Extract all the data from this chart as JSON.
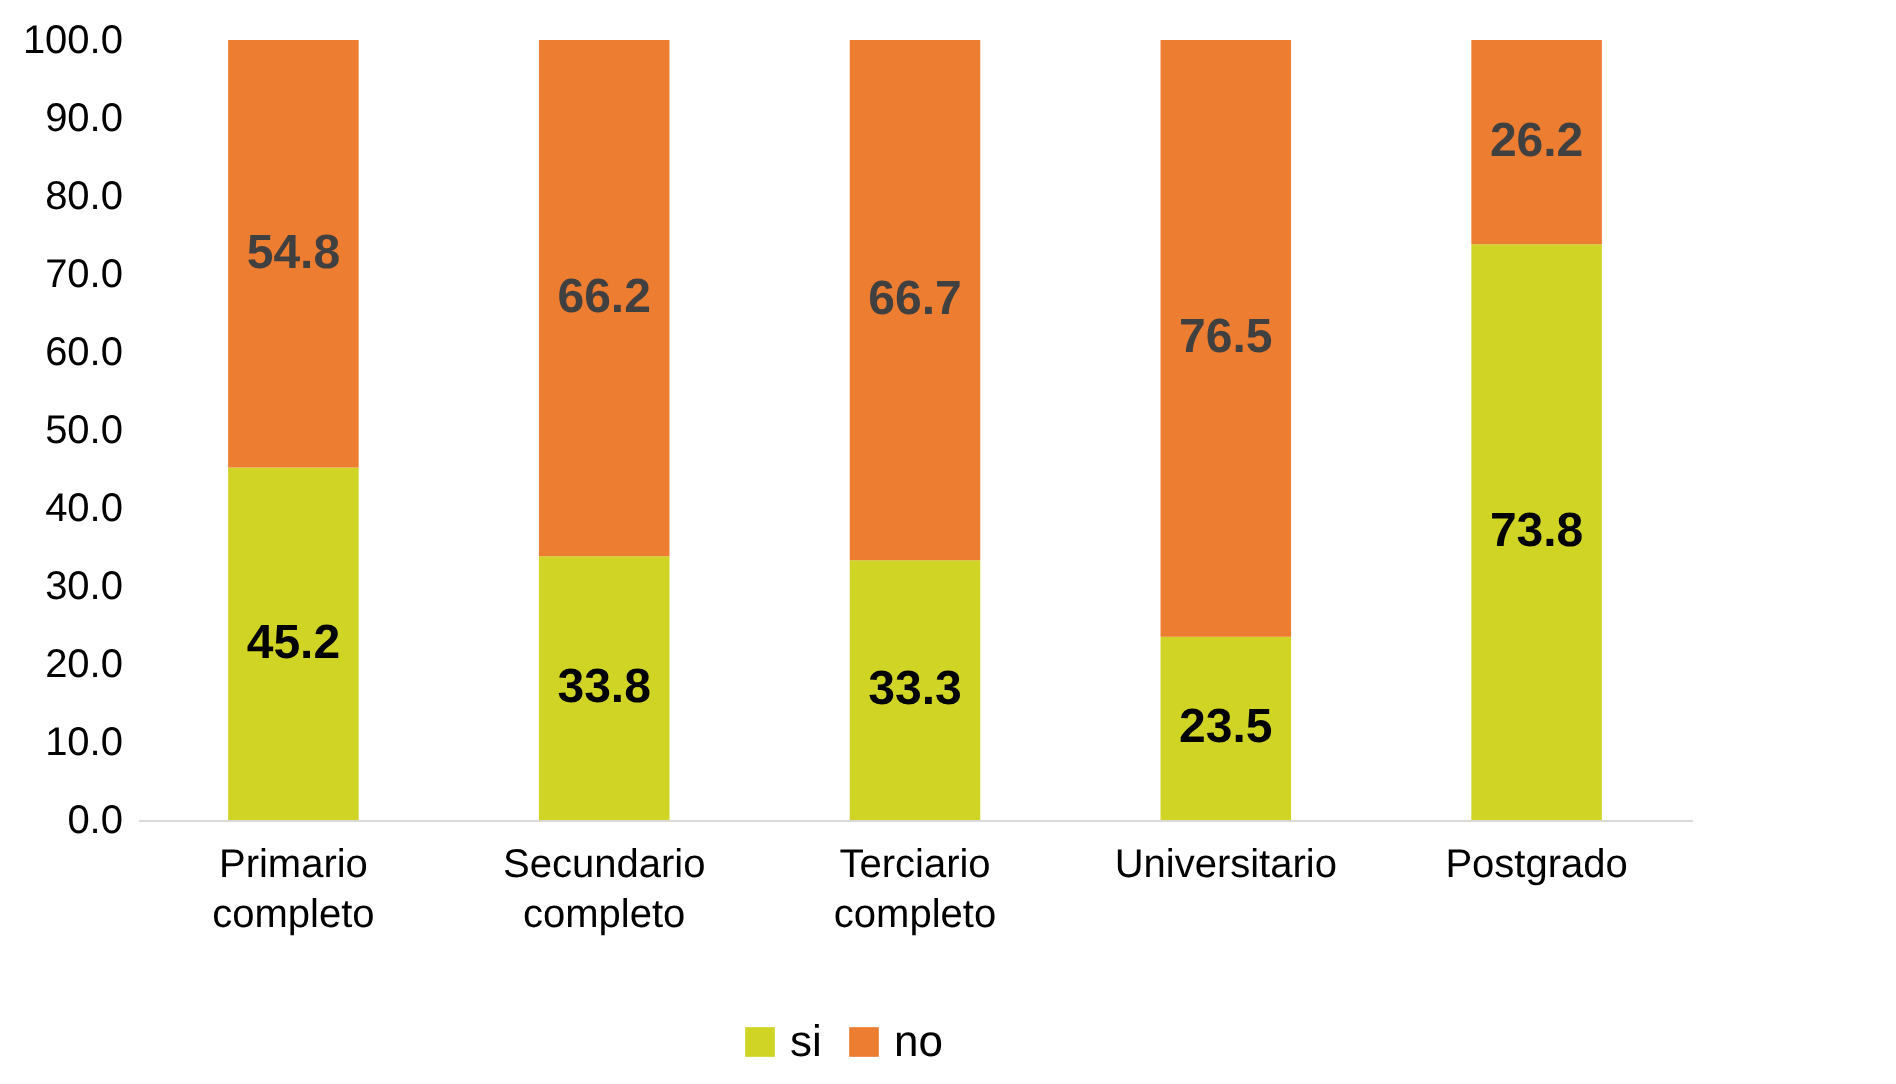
{
  "chart_data": {
    "type": "bar",
    "stacked": true,
    "categories": [
      "Primario completo",
      "Secundario completo",
      "Terciario completo",
      "Universitario",
      "Postgrado"
    ],
    "series": [
      {
        "name": "si",
        "color": "#d0d424",
        "values": [
          45.2,
          33.8,
          33.3,
          23.5,
          73.8
        ]
      },
      {
        "name": "no",
        "color": "#ed7d31",
        "values": [
          54.8,
          66.2,
          66.7,
          76.5,
          26.2
        ]
      }
    ],
    "ylim": [
      0,
      100
    ],
    "yticks": [
      {
        "value": 0,
        "label": "0.0"
      },
      {
        "value": 10,
        "label": "10.0"
      },
      {
        "value": 20,
        "label": "20.0"
      },
      {
        "value": 30,
        "label": "30.0"
      },
      {
        "value": 40,
        "label": "40.0"
      },
      {
        "value": 50,
        "label": "50.0"
      },
      {
        "value": 60,
        "label": "60.0"
      },
      {
        "value": 70,
        "label": "70.0"
      },
      {
        "value": 80,
        "label": "80.0"
      },
      {
        "value": 90,
        "label": "90.0"
      },
      {
        "value": 100,
        "label": "100.0"
      }
    ],
    "grid": false,
    "legend": "bottom",
    "data_labels": true
  }
}
